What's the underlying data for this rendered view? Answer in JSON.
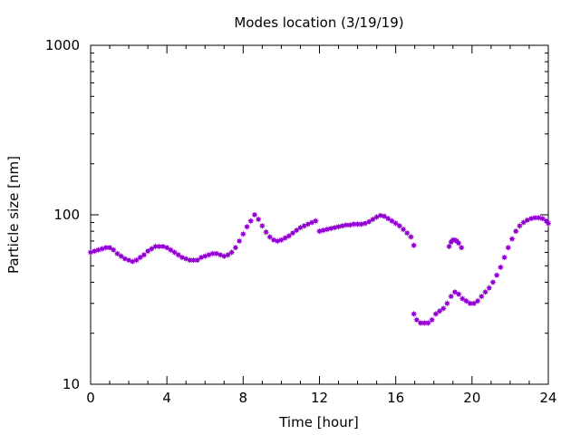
{
  "chart_data": {
    "type": "scatter",
    "title": "Modes location (3/19/19)",
    "xlabel": "Time [hour]",
    "ylabel": "Particle size [nm]",
    "xlim": [
      0,
      24
    ],
    "ylim": [
      10,
      1000
    ],
    "yscale": "log",
    "grid": false,
    "xticks": [
      0,
      4,
      8,
      12,
      16,
      20,
      24
    ],
    "xtick_labels": [
      "0",
      "4",
      "8",
      "12",
      "16",
      "20",
      "24"
    ],
    "yticks": [
      10,
      100,
      1000
    ],
    "ytick_labels": [
      "10",
      "100",
      "1000"
    ],
    "marker_color": "#9400d3",
    "marker": "star",
    "series": [
      {
        "name": "",
        "x": [
          0.0,
          0.2,
          0.4,
          0.6,
          0.8,
          1.0,
          1.2,
          1.4,
          1.6,
          1.8,
          2.0,
          2.2,
          2.4,
          2.6,
          2.8,
          3.0,
          3.2,
          3.4,
          3.6,
          3.8,
          4.0,
          4.2,
          4.4,
          4.6,
          4.8,
          5.0,
          5.2,
          5.4,
          5.6,
          5.8,
          6.0,
          6.2,
          6.4,
          6.6,
          6.8,
          7.0,
          7.2,
          7.4,
          7.6,
          7.8,
          8.0,
          8.2,
          8.4,
          8.6,
          8.8,
          9.0,
          9.2,
          9.4,
          9.6,
          9.8,
          10.0,
          10.2,
          10.4,
          10.6,
          10.8,
          11.0,
          11.2,
          11.4,
          11.6,
          11.8,
          12.0,
          12.2,
          12.4,
          12.6,
          12.8,
          13.0,
          13.2,
          13.4,
          13.6,
          13.8,
          14.0,
          14.2,
          14.4,
          14.6,
          14.8,
          15.0,
          15.2,
          15.4,
          15.6,
          15.8,
          16.0,
          16.2,
          16.4,
          16.6,
          16.8,
          16.95
        ],
        "y": [
          60,
          61,
          62,
          63,
          64,
          64,
          62,
          59,
          57,
          55,
          54,
          53,
          54,
          56,
          58,
          61,
          63,
          65,
          65,
          65,
          64,
          62,
          60,
          58,
          56,
          55,
          54,
          54,
          54,
          56,
          57,
          58,
          59,
          59,
          58,
          57,
          58,
          60,
          64,
          70,
          77,
          85,
          92,
          100,
          94,
          86,
          79,
          74,
          71,
          70,
          71,
          73,
          75,
          78,
          81,
          84,
          86,
          88,
          90,
          92,
          80,
          81,
          82,
          83,
          84,
          85,
          86,
          87,
          87,
          88,
          88,
          88,
          89,
          91,
          94,
          97,
          99,
          98,
          95,
          92,
          89,
          86,
          82,
          78,
          74,
          66
        ]
      },
      {
        "name": "",
        "x": [
          16.95,
          17.1,
          17.3,
          17.5,
          17.7,
          17.9,
          18.1,
          18.3,
          18.5,
          18.7,
          18.9,
          19.1,
          19.3,
          19.5,
          19.7,
          19.9,
          20.1,
          20.3,
          20.5,
          20.7,
          20.9,
          21.1,
          21.3,
          21.5,
          21.7,
          21.9,
          22.1,
          22.3,
          22.5,
          22.7,
          22.9,
          23.1,
          23.3,
          23.5,
          23.7,
          23.9,
          24.0
        ],
        "y": [
          26,
          24,
          23,
          23,
          23,
          24,
          26,
          27,
          28,
          30,
          33,
          35,
          34,
          32,
          31,
          30,
          30,
          31,
          33,
          35,
          37,
          40,
          44,
          49,
          56,
          64,
          72,
          80,
          86,
          90,
          93,
          95,
          96,
          96,
          95,
          92,
          89
        ]
      },
      {
        "name": "",
        "x": [
          18.8,
          18.9,
          19.0,
          19.1,
          19.2,
          19.3,
          19.45
        ],
        "y": [
          65,
          69,
          71,
          71,
          70,
          68,
          64
        ]
      }
    ]
  }
}
